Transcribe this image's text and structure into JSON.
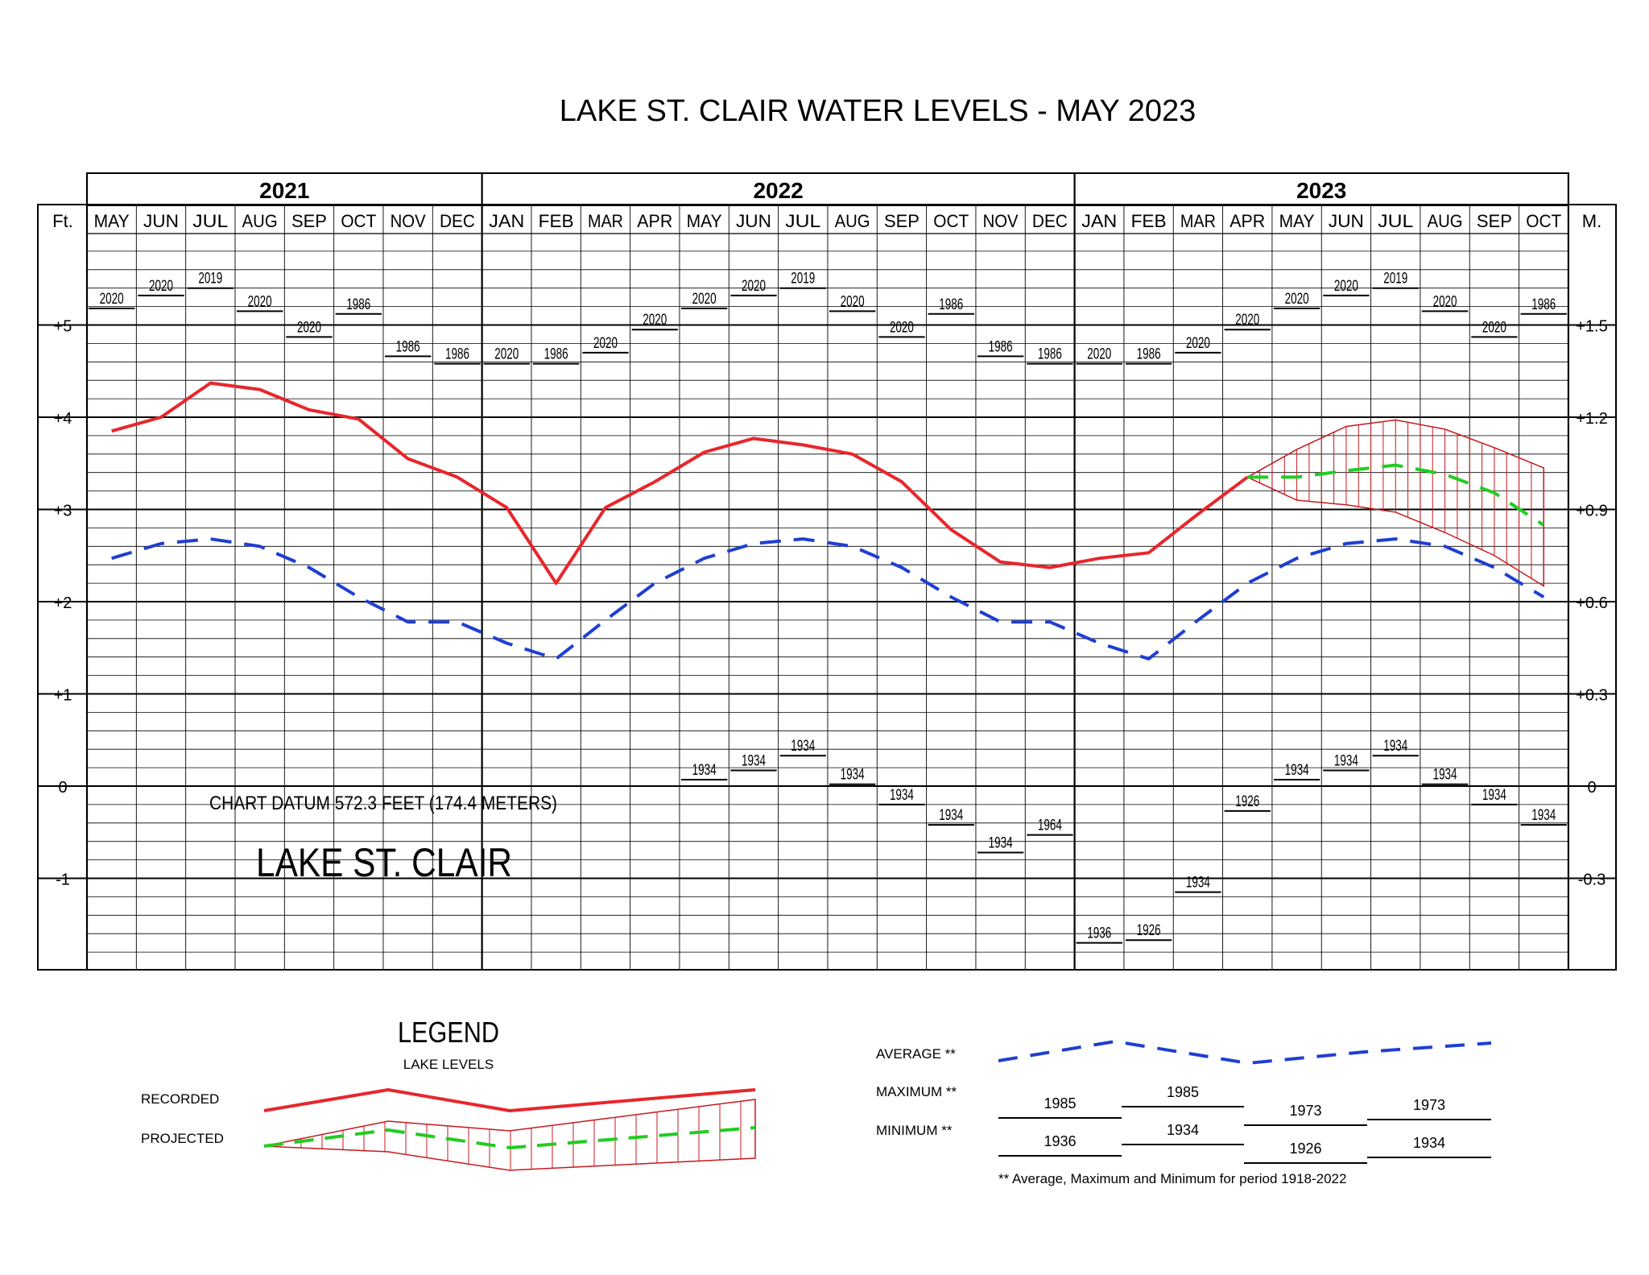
{
  "title": "LAKE ST. CLAIR WATER LEVELS - MAY 2023",
  "chart_data": {
    "type": "line",
    "title": "LAKE ST. CLAIR WATER LEVELS - MAY 2023",
    "year_groups": [
      {
        "label": "2021",
        "months": 8
      },
      {
        "label": "2022",
        "months": 12
      },
      {
        "label": "2023",
        "months": 10
      }
    ],
    "months": [
      "MAY",
      "JUN",
      "JUL",
      "AUG",
      "SEP",
      "OCT",
      "NOV",
      "DEC",
      "JAN",
      "FEB",
      "MAR",
      "APR",
      "MAY",
      "JUN",
      "JUL",
      "AUG",
      "SEP",
      "OCT",
      "NOV",
      "DEC",
      "JAN",
      "FEB",
      "MAR",
      "APR",
      "MAY",
      "JUN",
      "JUL",
      "AUG",
      "SEP",
      "OCT"
    ],
    "left_axis": {
      "label": "Ft.",
      "ticks": [
        {
          "value": 5,
          "label": "+5"
        },
        {
          "value": 4,
          "label": "+4"
        },
        {
          "value": 3,
          "label": "+3"
        },
        {
          "value": 2,
          "label": "+2"
        },
        {
          "value": 1,
          "label": "+1"
        },
        {
          "value": 0,
          "label": "0"
        },
        {
          "value": -1,
          "label": "-1"
        }
      ]
    },
    "right_axis": {
      "label": "M.",
      "ticks": [
        {
          "value": 5,
          "label": "+1.5"
        },
        {
          "value": 4,
          "label": "+1.2"
        },
        {
          "value": 3,
          "label": "+0.9"
        },
        {
          "value": 2,
          "label": "+0.6"
        },
        {
          "value": 1,
          "label": "+0.3"
        },
        {
          "value": 0,
          "label": "0"
        },
        {
          "value": -1,
          "label": "-0.3"
        }
      ]
    },
    "ylim": [
      -2,
      6
    ],
    "series": [
      {
        "name": "RECORDED",
        "color": "#e8262b",
        "style": "solid",
        "values": [
          3.85,
          4.0,
          4.37,
          4.3,
          4.08,
          3.98,
          3.55,
          3.35,
          3.02,
          2.2,
          3.02,
          3.3,
          3.62,
          3.77,
          3.7,
          3.6,
          3.3,
          2.78,
          2.43,
          2.37,
          2.47,
          2.53,
          2.95,
          3.35
        ]
      },
      {
        "name": "PROJECTED",
        "color": "#22cc22",
        "style": "dashed",
        "values": [
          null,
          null,
          null,
          null,
          null,
          null,
          null,
          null,
          null,
          null,
          null,
          null,
          null,
          null,
          null,
          null,
          null,
          null,
          null,
          null,
          null,
          null,
          null,
          3.35,
          3.35,
          3.42,
          3.48,
          3.38,
          3.18,
          2.83
        ]
      },
      {
        "name": "AVERAGE",
        "color": "#1f3fd1",
        "style": "dashed",
        "values": [
          2.47,
          2.63,
          2.68,
          2.6,
          2.37,
          2.05,
          1.78,
          1.78,
          1.55,
          1.38,
          1.8,
          2.2,
          2.47,
          2.63,
          2.68,
          2.6,
          2.37,
          2.05,
          1.78,
          1.78,
          1.55,
          1.38,
          1.8,
          2.2,
          2.47,
          2.63,
          2.68,
          2.6,
          2.37,
          2.05
        ]
      }
    ],
    "projection_band": {
      "upper": [
        null,
        null,
        null,
        null,
        null,
        null,
        null,
        null,
        null,
        null,
        null,
        null,
        null,
        null,
        null,
        null,
        null,
        null,
        null,
        null,
        null,
        null,
        null,
        3.35,
        3.65,
        3.9,
        3.97,
        3.87,
        3.67,
        3.45
      ],
      "lower": [
        null,
        null,
        null,
        null,
        null,
        null,
        null,
        null,
        null,
        null,
        null,
        null,
        null,
        null,
        null,
        null,
        null,
        null,
        null,
        null,
        null,
        null,
        null,
        3.35,
        3.1,
        3.05,
        2.97,
        2.75,
        2.5,
        2.17
      ]
    },
    "maximum": [
      {
        "level": 5.18,
        "year": "2020"
      },
      {
        "level": 5.32,
        "year": "2020"
      },
      {
        "level": 5.4,
        "year": "2019"
      },
      {
        "level": 5.15,
        "year": "2020"
      },
      {
        "level": 4.87,
        "year": "2020"
      },
      {
        "level": 5.12,
        "year": "1986"
      },
      {
        "level": 4.66,
        "year": "1986"
      },
      {
        "level": 4.58,
        "year": "1986"
      },
      {
        "level": 4.58,
        "year": "2020"
      },
      {
        "level": 4.58,
        "year": "1986"
      },
      {
        "level": 4.7,
        "year": "2020"
      },
      {
        "level": 4.95,
        "year": "2020"
      },
      {
        "level": 5.18,
        "year": "2020"
      },
      {
        "level": 5.32,
        "year": "2020"
      },
      {
        "level": 5.4,
        "year": "2019"
      },
      {
        "level": 5.15,
        "year": "2020"
      },
      {
        "level": 4.87,
        "year": "2020"
      },
      {
        "level": 5.12,
        "year": "1986"
      },
      {
        "level": 4.66,
        "year": "1986"
      },
      {
        "level": 4.58,
        "year": "1986"
      },
      {
        "level": 4.58,
        "year": "2020"
      },
      {
        "level": 4.58,
        "year": "1986"
      },
      {
        "level": 4.7,
        "year": "2020"
      },
      {
        "level": 4.95,
        "year": "2020"
      },
      {
        "level": 5.18,
        "year": "2020"
      },
      {
        "level": 5.32,
        "year": "2020"
      },
      {
        "level": 5.4,
        "year": "2019"
      },
      {
        "level": 5.15,
        "year": "2020"
      },
      {
        "level": 4.87,
        "year": "2020"
      },
      {
        "level": 5.12,
        "year": "1986"
      }
    ],
    "minimum": [
      null,
      null,
      null,
      null,
      null,
      null,
      null,
      null,
      null,
      null,
      null,
      null,
      {
        "level": 0.07,
        "year": "1934"
      },
      {
        "level": 0.17,
        "year": "1934"
      },
      {
        "level": 0.33,
        "year": "1934"
      },
      {
        "level": 0.02,
        "year": "1934"
      },
      {
        "level": -0.2,
        "year": "1934"
      },
      {
        "level": -0.42,
        "year": "1934"
      },
      {
        "level": -0.72,
        "year": "1934"
      },
      {
        "level": -0.53,
        "year": "1964"
      },
      {
        "level": -1.7,
        "year": "1936"
      },
      {
        "level": -1.67,
        "year": "1926"
      },
      {
        "level": -1.15,
        "year": "1934"
      },
      {
        "level": -0.27,
        "year": "1926"
      },
      {
        "level": 0.07,
        "year": "1934"
      },
      {
        "level": 0.17,
        "year": "1934"
      },
      {
        "level": 0.33,
        "year": "1934"
      },
      {
        "level": 0.02,
        "year": "1934"
      },
      {
        "level": -0.2,
        "year": "1934"
      },
      {
        "level": -0.42,
        "year": "1934"
      }
    ]
  },
  "annotations": {
    "datum": "CHART DATUM  572.3 FEET (174.4 METERS)",
    "lake_name": "LAKE ST. CLAIR"
  },
  "legend": {
    "title": "LEGEND",
    "subtitle": "LAKE LEVELS",
    "recorded": "RECORDED",
    "projected": "PROJECTED",
    "average": "AVERAGE **",
    "maximum": "MAXIMUM **",
    "minimum": "MINIMUM **",
    "max_years": [
      "1985",
      "1985",
      "1973",
      "1973"
    ],
    "min_years": [
      "1936",
      "1934",
      "1926",
      "1934"
    ],
    "footnote": "** Average, Maximum and Minimum for period 1918-2022"
  }
}
